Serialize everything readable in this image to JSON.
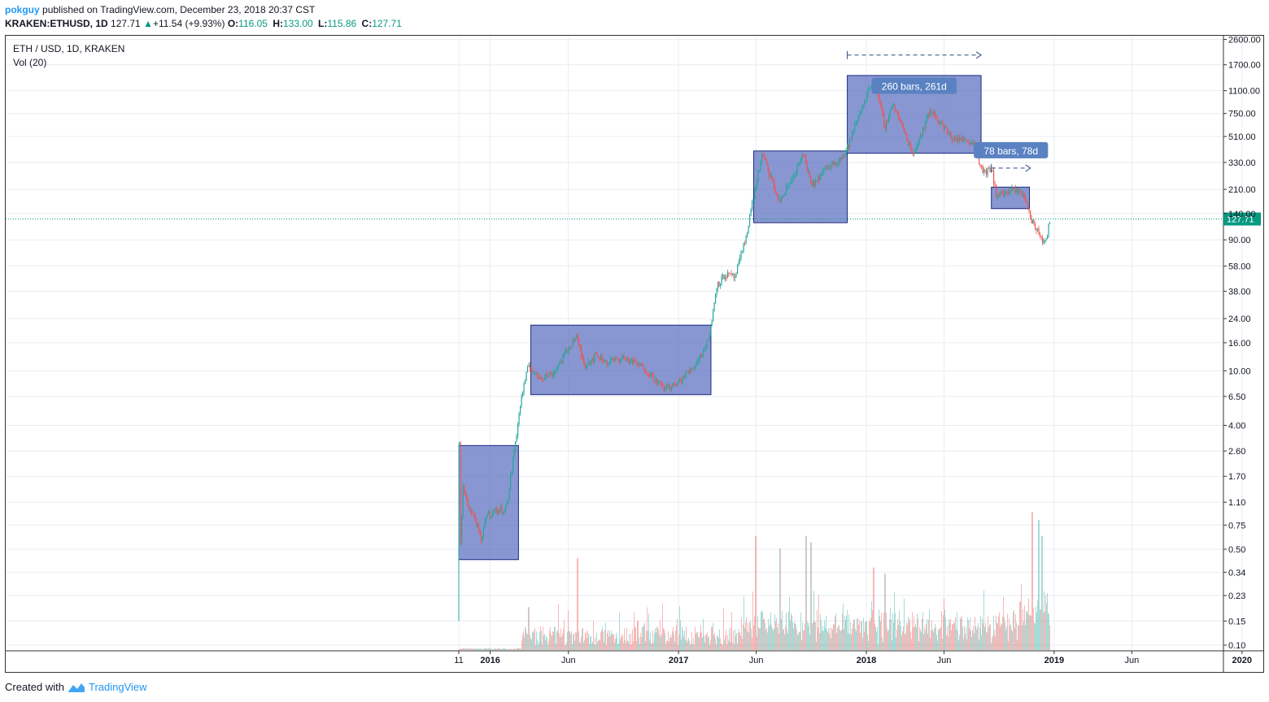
{
  "header": {
    "author": "pokguy",
    "published_text": "published on TradingView.com, December 23, 2018 20:37 CST",
    "symbol_line": "KRAKEN:ETHUSD, 1D",
    "last_price": "127.71",
    "change": "+11.54 (+9.93%)",
    "ohlc": [
      {
        "key": "O:",
        "value": "116.05"
      },
      {
        "key": "H:",
        "value": "133.00"
      },
      {
        "key": "L:",
        "value": "115.86"
      },
      {
        "key": "C:",
        "value": "127.71"
      }
    ]
  },
  "legend": {
    "title": "ETH / USD, 1D, KRAKEN",
    "volume": "Vol (20)"
  },
  "footer": {
    "created_with": "Created with",
    "brand": "TradingView"
  },
  "colors": {
    "up": "#26a69a",
    "down": "#ef5350",
    "box_fill": "#5a6fbf",
    "box_stroke": "#1a2a80",
    "label_bg": "#5a82c2",
    "last_price_bg": "#089981",
    "grid": "#e8ecf2"
  },
  "chart_data": {
    "type": "candlestick",
    "title": "ETH / USD, 1D, KRAKEN",
    "y_scale": "log",
    "ylim": [
      0.08,
      3100
    ],
    "y_ticks": [
      "2600.00",
      "1700.00",
      "1100.00",
      "750.00",
      "510.00",
      "330.00",
      "210.00",
      "140.00",
      "90.00",
      "58.00",
      "38.00",
      "24.00",
      "16.00",
      "10.00",
      "6.50",
      "4.00",
      "2.60",
      "1.70",
      "1.10",
      "0.75",
      "0.50",
      "0.34",
      "0.23",
      "0.15",
      "0.10"
    ],
    "x_ticks": [
      {
        "label": "11",
        "date": "2015-11-01"
      },
      {
        "label": "2016",
        "date": "2016-01-01"
      },
      {
        "label": "Jun",
        "date": "2016-06-01"
      },
      {
        "label": "2017",
        "date": "2017-01-01"
      },
      {
        "label": "Jun",
        "date": "2017-06-01"
      },
      {
        "label": "2018",
        "date": "2018-01-01"
      },
      {
        "label": "Jun",
        "date": "2018-06-01"
      },
      {
        "label": "2019",
        "date": "2019-01-01"
      },
      {
        "label": "Jun",
        "date": "2019-06-01"
      },
      {
        "label": "2020",
        "date": "2020-01-01"
      }
    ],
    "last_price": 127.71,
    "price_path": [
      [
        "2015-11-01",
        2.9
      ],
      [
        "2015-11-03",
        0.5
      ],
      [
        "2015-11-08",
        1.4
      ],
      [
        "2015-11-20",
        1.0
      ],
      [
        "2015-12-01",
        0.85
      ],
      [
        "2015-12-15",
        0.55
      ],
      [
        "2015-12-22",
        0.88
      ],
      [
        "2016-01-10",
        0.95
      ],
      [
        "2016-02-01",
        1.0
      ],
      [
        "2016-02-15",
        2.5
      ],
      [
        "2016-03-01",
        6.5
      ],
      [
        "2016-03-15",
        11.0
      ],
      [
        "2016-04-01",
        9.0
      ],
      [
        "2016-05-01",
        9.5
      ],
      [
        "2016-06-15",
        18.0
      ],
      [
        "2016-07-01",
        11.0
      ],
      [
        "2016-07-25",
        13.0
      ],
      [
        "2016-08-15",
        11.5
      ],
      [
        "2016-09-15",
        12.5
      ],
      [
        "2016-10-25",
        10.5
      ],
      [
        "2016-12-01",
        7.5
      ],
      [
        "2016-12-25",
        7.8
      ],
      [
        "2017-02-01",
        11.0
      ],
      [
        "2017-02-25",
        16.0
      ],
      [
        "2017-03-05",
        22.0
      ],
      [
        "2017-03-15",
        42.0
      ],
      [
        "2017-04-01",
        50.0
      ],
      [
        "2017-04-20",
        48.0
      ],
      [
        "2017-05-10",
        90.0
      ],
      [
        "2017-05-25",
        180.0
      ],
      [
        "2017-06-12",
        380.0
      ],
      [
        "2017-07-15",
        170.0
      ],
      [
        "2017-08-01",
        220.0
      ],
      [
        "2017-09-01",
        380.0
      ],
      [
        "2017-09-15",
        220.0
      ],
      [
        "2017-10-15",
        300.0
      ],
      [
        "2017-11-20",
        380.0
      ],
      [
        "2017-12-15",
        700.0
      ],
      [
        "2018-01-13",
        1350.0
      ],
      [
        "2018-02-06",
        600.0
      ],
      [
        "2018-02-20",
        900.0
      ],
      [
        "2018-04-01",
        380.0
      ],
      [
        "2018-05-05",
        800.0
      ],
      [
        "2018-06-15",
        500.0
      ],
      [
        "2018-07-25",
        470.0
      ],
      [
        "2018-08-15",
        280.0
      ],
      [
        "2018-09-01",
        290.0
      ],
      [
        "2018-09-10",
        190.0
      ],
      [
        "2018-10-10",
        205.0
      ],
      [
        "2018-11-01",
        200.0
      ],
      [
        "2018-11-15",
        130.0
      ],
      [
        "2018-12-01",
        100.0
      ],
      [
        "2018-12-14",
        84.0
      ],
      [
        "2018-12-23",
        127.71
      ]
    ],
    "consolidation_boxes": [
      {
        "start": "2015-11-01",
        "end": "2016-02-25",
        "low": 0.42,
        "high": 2.85
      },
      {
        "start": "2016-03-20",
        "end": "2017-03-05",
        "low": 6.7,
        "high": 21.5
      },
      {
        "start": "2017-05-27",
        "end": "2017-11-25",
        "low": 120,
        "high": 400
      },
      {
        "start": "2017-11-25",
        "end": "2018-08-12",
        "low": 385,
        "high": 1420
      },
      {
        "start": "2018-09-01",
        "end": "2018-11-14",
        "low": 152,
        "high": 218
      }
    ],
    "annotations": [
      {
        "text": "260 bars, 261d",
        "start": "2017-11-25",
        "end": "2018-08-12",
        "arrow_price": 2000,
        "label_price": 1180
      },
      {
        "text": "78 bars, 78d",
        "start": "2018-09-01",
        "end": "2018-11-16",
        "arrow_price": 300,
        "label_price": 400
      }
    ],
    "volume": {
      "series": "Vol (20)",
      "active_from": "2016-03-01",
      "spikes": [
        {
          "date": "2016-06-18",
          "level": 0.58
        },
        {
          "date": "2016-03-15",
          "level": 0.27
        },
        {
          "date": "2017-05-30",
          "level": 0.72
        },
        {
          "date": "2017-07-16",
          "level": 0.64
        },
        {
          "date": "2017-09-05",
          "level": 0.72
        },
        {
          "date": "2017-09-15",
          "level": 0.68
        },
        {
          "date": "2018-01-15",
          "level": 0.52
        },
        {
          "date": "2018-02-05",
          "level": 0.48
        },
        {
          "date": "2018-11-19",
          "level": 0.87
        },
        {
          "date": "2018-12-01",
          "level": 0.82
        },
        {
          "date": "2018-12-08",
          "level": 0.72
        }
      ]
    }
  }
}
